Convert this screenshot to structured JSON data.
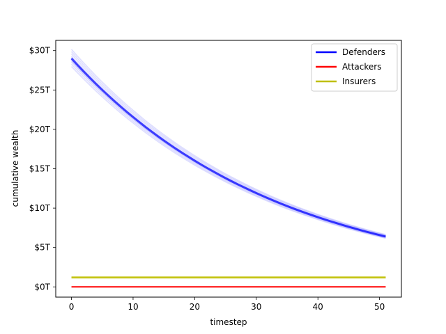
{
  "chart_data": {
    "type": "line",
    "title": "",
    "xlabel": "timestep",
    "ylabel": "cumulative wealth",
    "xlim": [
      -2.55,
      53.55
    ],
    "ylim": [
      -1.3,
      31.3
    ],
    "x_ticks": [
      0,
      10,
      20,
      30,
      40,
      50
    ],
    "y_ticks": [
      0,
      5,
      10,
      15,
      20,
      25,
      30
    ],
    "y_tick_labels": [
      "$0T",
      "$5T",
      "$10T",
      "$15T",
      "$20T",
      "$25T",
      "$30T"
    ],
    "y_unit": "trillions of dollars",
    "grid": false,
    "legend_position": "top-right",
    "x": [
      0,
      1,
      2,
      3,
      4,
      5,
      6,
      7,
      8,
      9,
      10,
      11,
      12,
      13,
      14,
      15,
      16,
      17,
      18,
      19,
      20,
      21,
      22,
      23,
      24,
      25,
      26,
      27,
      28,
      29,
      30,
      31,
      32,
      33,
      34,
      35,
      36,
      37,
      38,
      39,
      40,
      41,
      42,
      43,
      44,
      45,
      46,
      47,
      48,
      49,
      50,
      51
    ],
    "series": [
      {
        "name": "Defenders",
        "color": "#0000ff",
        "band": true,
        "values": [
          29.0,
          28.15,
          27.33,
          26.53,
          25.75,
          25.0,
          24.27,
          23.56,
          22.87,
          22.2,
          21.56,
          20.93,
          20.31,
          19.72,
          19.14,
          18.58,
          18.04,
          17.51,
          17.0,
          16.51,
          16.02,
          15.55,
          15.1,
          14.66,
          14.23,
          13.81,
          13.41,
          13.02,
          12.64,
          12.27,
          11.91,
          11.56,
          11.22,
          10.89,
          10.57,
          10.26,
          9.96,
          9.67,
          9.39,
          9.12,
          8.85,
          8.59,
          8.34,
          8.1,
          7.86,
          7.63,
          7.41,
          7.19,
          6.98,
          6.78,
          6.58,
          6.39
        ]
      },
      {
        "name": "Attackers",
        "color": "#ff0000",
        "band": false,
        "values": [
          0,
          0,
          0,
          0,
          0,
          0,
          0,
          0,
          0,
          0,
          0,
          0,
          0,
          0,
          0,
          0,
          0,
          0,
          0,
          0,
          0,
          0,
          0,
          0,
          0,
          0,
          0,
          0,
          0,
          0,
          0,
          0,
          0,
          0,
          0,
          0,
          0,
          0,
          0,
          0,
          0,
          0,
          0,
          0,
          0,
          0,
          0,
          0,
          0,
          0,
          0,
          0
        ]
      },
      {
        "name": "Insurers",
        "color": "#bfbf00",
        "band": true,
        "values": [
          1.2,
          1.2,
          1.2,
          1.2,
          1.2,
          1.2,
          1.2,
          1.2,
          1.2,
          1.2,
          1.2,
          1.2,
          1.2,
          1.2,
          1.2,
          1.2,
          1.2,
          1.2,
          1.2,
          1.2,
          1.2,
          1.2,
          1.2,
          1.2,
          1.2,
          1.2,
          1.2,
          1.2,
          1.2,
          1.2,
          1.2,
          1.2,
          1.2,
          1.2,
          1.2,
          1.2,
          1.2,
          1.2,
          1.2,
          1.2,
          1.2,
          1.2,
          1.2,
          1.2,
          1.2,
          1.2,
          1.2,
          1.2,
          1.2,
          1.2,
          1.2,
          1.2
        ]
      }
    ]
  }
}
